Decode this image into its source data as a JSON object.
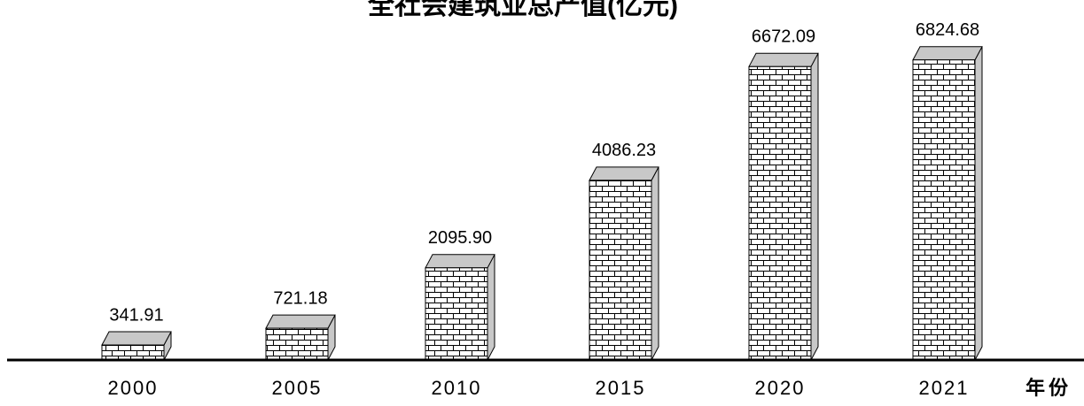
{
  "chart_data": {
    "type": "bar3d",
    "title": "全社会建筑业总产值(亿元)",
    "x_label": "年份",
    "categories": [
      "2000",
      "2005",
      "2010",
      "2015",
      "2020",
      "2021"
    ],
    "values": [
      341.91,
      721.18,
      2095.9,
      4086.23,
      6672.09,
      6824.68
    ],
    "value_labels": [
      "341.91",
      "721.18",
      "2095.90",
      "4086.23",
      "6672.09",
      "6824.68"
    ],
    "color": "#ffffff",
    "ylim": [
      0,
      7000
    ]
  }
}
